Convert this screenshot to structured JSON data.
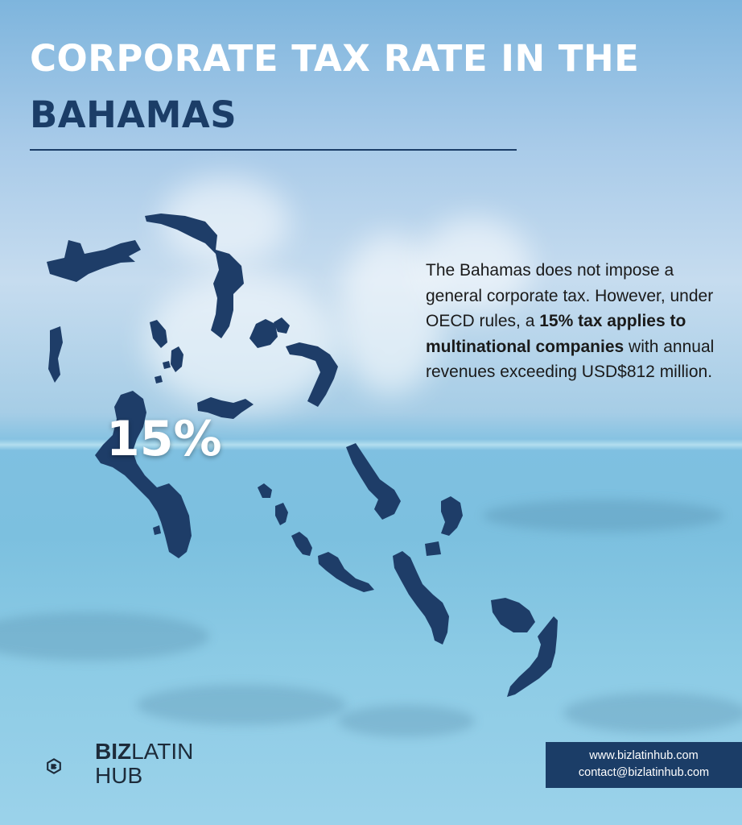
{
  "title": {
    "line1": "CORPORATE TAX RATE IN THE",
    "line2": "BAHAMAS"
  },
  "map": {
    "highlight_value": "15%"
  },
  "description": {
    "part1": "The Bahamas does not impose a general corporate tax. However, under OECD rules, a ",
    "bold": "15% tax applies to multinational companies",
    "part2": " with annual revenues exceeding USD$812 million."
  },
  "logo": {
    "bold": "BIZ",
    "light": "LATIN",
    "line2": "HUB"
  },
  "contact": {
    "website": "www.bizlatinhub.com",
    "email": "contact@bizlatinhub.com"
  },
  "colors": {
    "navy": "#1b3d67",
    "title_white": "#ffffff"
  }
}
